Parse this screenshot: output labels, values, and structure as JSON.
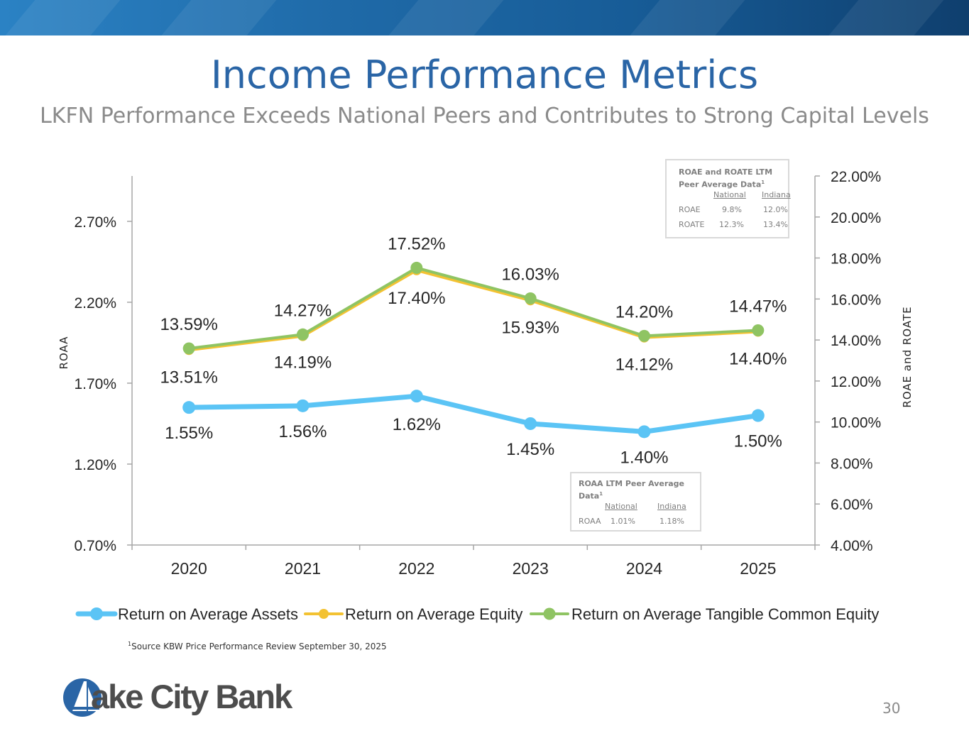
{
  "slide": {
    "title": "Income Performance Metrics",
    "subtitle": "LKFN Performance Exceeds National Peers and Contributes to Strong Capital Levels",
    "footnote_sup": "1",
    "footnote": "Source KBW Price Performance Review September 30, 2025",
    "logo_text": "ake City Bank",
    "page_number": "30"
  },
  "colors": {
    "roaa": "#5bc4f5",
    "roae": "#f3c232",
    "roate": "#8fc463",
    "axis": "#a6a6a6",
    "text": "#262626"
  },
  "chart_data": {
    "type": "line",
    "categories": [
      "2020",
      "2021",
      "2022",
      "2023",
      "2024",
      "2025"
    ],
    "left_axis": {
      "label": "ROAA",
      "ticks": [
        "0.70%",
        "1.20%",
        "1.70%",
        "2.20%",
        "2.70%"
      ],
      "tick_values": [
        0.7,
        1.2,
        1.7,
        2.2,
        2.7
      ],
      "range": [
        0.7,
        2.98
      ]
    },
    "right_axis": {
      "label": "ROAE and ROATE",
      "ticks": [
        "4.00%",
        "6.00%",
        "8.00%",
        "10.00%",
        "12.00%",
        "14.00%",
        "16.00%",
        "18.00%",
        "20.00%",
        "22.00%"
      ],
      "tick_values": [
        4,
        6,
        8,
        10,
        12,
        14,
        16,
        18,
        20,
        22
      ],
      "range": [
        4,
        22
      ]
    },
    "series": [
      {
        "name": "Return on Average Assets",
        "axis": "left",
        "values": [
          1.55,
          1.56,
          1.62,
          1.45,
          1.4,
          1.5
        ],
        "labels": [
          "1.55%",
          "1.56%",
          "1.62%",
          "1.45%",
          "1.40%",
          "1.50%"
        ]
      },
      {
        "name": "Return on Average Equity",
        "axis": "right",
        "values": [
          13.51,
          14.19,
          17.4,
          15.93,
          14.12,
          14.4
        ],
        "labels": [
          "13.51%",
          "14.19%",
          "17.40%",
          "15.93%",
          "14.12%",
          "14.40%"
        ]
      },
      {
        "name": "Return on Average Tangible Common Equity",
        "axis": "right",
        "values": [
          13.59,
          14.27,
          17.52,
          16.03,
          14.2,
          14.47
        ],
        "labels": [
          "13.59%",
          "14.27%",
          "17.52%",
          "16.03%",
          "14.20%",
          "14.47%"
        ]
      }
    ],
    "legend_position": "bottom"
  },
  "peer_roae": {
    "title": "ROAE and ROATE LTM Peer Average  Data",
    "title_sup": "1",
    "headers": [
      "National",
      "Indiana"
    ],
    "rows": [
      {
        "label": "ROAE",
        "national": "9.8%",
        "indiana": "12.0%"
      },
      {
        "label": "ROATE",
        "national": "12.3%",
        "indiana": "13.4%"
      }
    ]
  },
  "peer_roaa": {
    "title": "ROAA LTM Peer Average Data",
    "title_sup": "1",
    "headers": [
      "National",
      "Indiana"
    ],
    "rows": [
      {
        "label": "ROAA",
        "national": "1.01%",
        "indiana": "1.18%"
      }
    ]
  }
}
